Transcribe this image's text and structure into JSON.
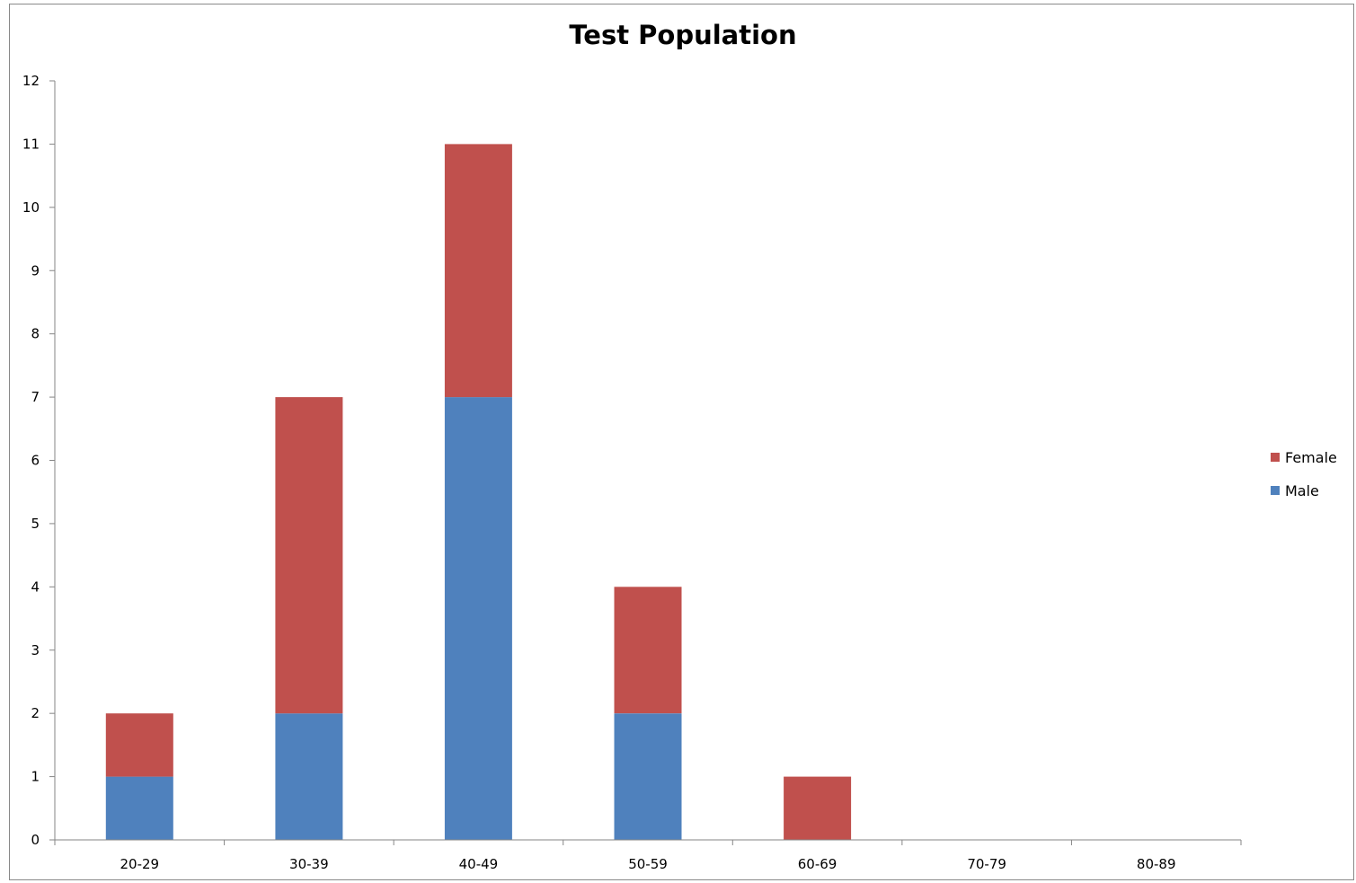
{
  "chart_data": {
    "type": "bar",
    "stacked": true,
    "title": "Test Population",
    "xlabel": "",
    "ylabel": "",
    "categories": [
      "20-29",
      "30-39",
      "40-49",
      "50-59",
      "60-69",
      "70-79",
      "80-89"
    ],
    "yticks": [
      "0",
      "1",
      "2",
      "3",
      "4",
      "5",
      "6",
      "7",
      "8",
      "9",
      "10",
      "11",
      "12"
    ],
    "ylim": [
      0,
      12
    ],
    "grid": false,
    "legend_position": "right",
    "series": [
      {
        "name": "Male",
        "color": "#4f81bd",
        "values": [
          1,
          2,
          7,
          2,
          0,
          0,
          0
        ]
      },
      {
        "name": "Female",
        "color": "#c0504d",
        "values": [
          1,
          5,
          4,
          2,
          1,
          0,
          0
        ]
      }
    ],
    "legend": [
      {
        "label": "Female",
        "color": "#c0504d"
      },
      {
        "label": "Male",
        "color": "#4f81bd"
      }
    ]
  }
}
